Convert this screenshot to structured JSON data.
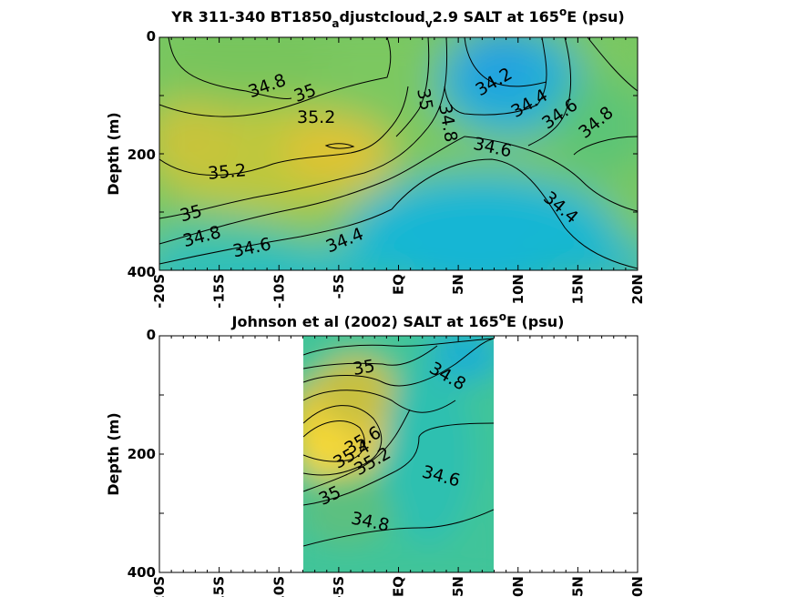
{
  "chart_data": [
    {
      "type": "heatmap",
      "title_parts": [
        "YR 311-340 BT1850",
        "a",
        "djustcloud",
        "v",
        "2.9 SALT at 165",
        "o",
        "E (psu)"
      ],
      "ylabel": "Depth (m)",
      "xlabel": "",
      "x_ticks": [
        "-20S",
        "-15S",
        "-10S",
        "-5S",
        "EQ",
        "5N",
        "10N",
        "15N",
        "20N"
      ],
      "y_ticks": [
        "0",
        "200",
        "400"
      ],
      "xlim": [
        -20,
        20
      ],
      "ylim": [
        400,
        0
      ],
      "contour_labels": [
        {
          "text": "34.8",
          "x": -11,
          "y": 80
        },
        {
          "text": "35",
          "x": -7.5,
          "y": 90
        },
        {
          "text": "35.2",
          "x": -6.5,
          "y": 130
        },
        {
          "text": "35",
          "x": 0.5,
          "y": 110
        },
        {
          "text": "34.8",
          "x": 2.5,
          "y": 130
        },
        {
          "text": "34.2",
          "x": 7.5,
          "y": 70
        },
        {
          "text": "34.4",
          "x": 11.5,
          "y": 100
        },
        {
          "text": "34.6",
          "x": 14,
          "y": 115
        },
        {
          "text": "34.8",
          "x": 16.5,
          "y": 130
        },
        {
          "text": "34.6",
          "x": 6.5,
          "y": 180
        },
        {
          "text": "35.2",
          "x": -14.5,
          "y": 225
        },
        {
          "text": "35",
          "x": -17.5,
          "y": 290
        },
        {
          "text": "34.8",
          "x": -16.5,
          "y": 330
        },
        {
          "text": "34.6",
          "x": -12,
          "y": 350
        },
        {
          "text": "34.4",
          "x": -4.5,
          "y": 330
        },
        {
          "text": "34.4",
          "x": 13.5,
          "y": 300
        }
      ]
    },
    {
      "type": "heatmap",
      "title_parts": [
        "Johnson et al (2002) SALT at 165",
        "o",
        "E (psu)"
      ],
      "ylabel": "Depth (m)",
      "xlabel": "",
      "x_ticks": [
        "-20S",
        "-15S",
        "-10S",
        "-5S",
        "EQ",
        "5N",
        "10N",
        "15N",
        "20N"
      ],
      "y_ticks": [
        "0",
        "200",
        "400"
      ],
      "xlim": [
        -20,
        20
      ],
      "ylim": [
        400,
        0
      ],
      "data_extent_x": [
        -8,
        8
      ],
      "contour_labels": [
        {
          "text": "35",
          "x": -3,
          "y": 60
        },
        {
          "text": "34.8",
          "x": 4,
          "y": 80
        },
        {
          "text": "35.6",
          "x": -4,
          "y": 180
        },
        {
          "text": "35.4",
          "x": -3,
          "y": 200
        },
        {
          "text": "35.2",
          "x": -2,
          "y": 210
        },
        {
          "text": "35",
          "x": -6,
          "y": 270
        },
        {
          "text": "34.6",
          "x": 4,
          "y": 260
        },
        {
          "text": "34.8",
          "x": -2,
          "y": 320
        }
      ]
    }
  ]
}
